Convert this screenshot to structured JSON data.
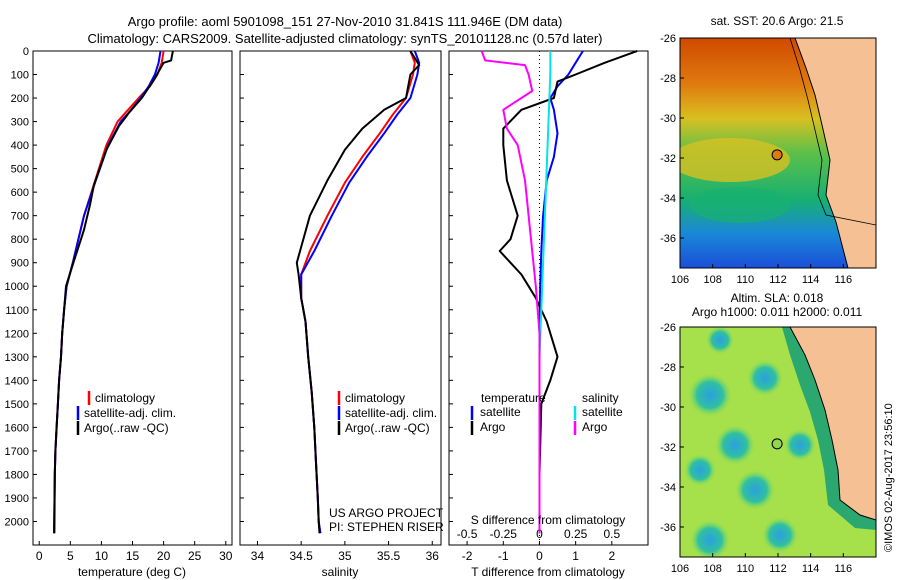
{
  "header": {
    "title_line1": "Argo profile: aoml 5901098_151 27-Nov-2010 31.841S 111.946E (DM data)",
    "title_line2": "Climatology: CARS2009. Satellite-adjusted climatology: synTS_20101128.nc (0.57d later)"
  },
  "colors": {
    "climatology": "#ff0000",
    "satellite": "#0000ff",
    "argo": "#000000",
    "salinity_satellite": "#00e5e5",
    "salinity_argo": "#ff00ff"
  },
  "chart_data": [
    {
      "type": "line",
      "id": "temperature",
      "xlabel": "temperature (deg C)",
      "xlim": [
        -1,
        31
      ],
      "ylim": [
        2100,
        0
      ],
      "xticks": [
        0,
        5,
        10,
        15,
        20,
        25,
        30
      ],
      "yticks": [
        0,
        100,
        200,
        300,
        400,
        500,
        600,
        700,
        800,
        900,
        1000,
        1100,
        1200,
        1300,
        1400,
        1500,
        1600,
        1700,
        1800,
        1900,
        2000
      ],
      "legend": [
        "climatology",
        "satellite-adj. clim.",
        "Argo(..raw -QC)"
      ],
      "series": [
        {
          "name": "climatology",
          "color": "#ff0000",
          "x": [
            20.0,
            19.7,
            19.0,
            17.8,
            16.0,
            14.3,
            12.6,
            10.8,
            9.0,
            7.2,
            5.4,
            4.4,
            4.0,
            3.7,
            3.5,
            3.2,
            3.0,
            2.8,
            2.6,
            2.5,
            2.45
          ],
          "y": [
            0,
            50,
            100,
            150,
            200,
            250,
            300,
            400,
            550,
            700,
            900,
            1000,
            1100,
            1200,
            1300,
            1400,
            1500,
            1600,
            1700,
            1800,
            2050
          ]
        },
        {
          "name": "satellite",
          "color": "#0000ff",
          "x": [
            19.5,
            19.2,
            18.6,
            17.6,
            16.3,
            14.8,
            13.1,
            11.1,
            9.1,
            7.2,
            5.4,
            4.4,
            4.0,
            3.7,
            3.5,
            3.2,
            3.0,
            2.8,
            2.6,
            2.5,
            2.4
          ],
          "y": [
            0,
            50,
            100,
            150,
            200,
            250,
            300,
            400,
            550,
            700,
            900,
            1000,
            1100,
            1200,
            1300,
            1400,
            1500,
            1600,
            1700,
            1800,
            2050
          ]
        },
        {
          "name": "argo",
          "color": "#000000",
          "x": [
            21.5,
            21.2,
            20.0,
            18.5,
            16.5,
            14.5,
            12.8,
            10.8,
            8.8,
            8.2,
            7.2,
            5.5,
            4.3,
            4.0,
            3.7,
            3.5,
            3.2,
            3.0,
            2.8,
            2.6,
            2.5,
            2.4
          ],
          "y": [
            0,
            40,
            50,
            120,
            200,
            260,
            320,
            420,
            570,
            650,
            760,
            900,
            1000,
            1100,
            1200,
            1300,
            1400,
            1500,
            1600,
            1700,
            1800,
            2050
          ]
        }
      ]
    },
    {
      "type": "line",
      "id": "salinity",
      "xlabel": "salinity",
      "xlim": [
        33.8,
        36.1
      ],
      "ylim": [
        2100,
        0
      ],
      "xticks": [
        34,
        34.5,
        35,
        35.5,
        36
      ],
      "legend": [
        "climatology",
        "satellite-adj. clim.",
        "Argo(..raw -QC)"
      ],
      "series": [
        {
          "name": "climatology",
          "color": "#ff0000",
          "x": [
            35.75,
            35.8,
            35.78,
            35.7,
            35.55,
            35.4,
            35.2,
            35.0,
            34.8,
            34.6,
            34.5,
            34.5,
            34.55,
            34.58,
            34.62,
            34.65,
            34.67,
            34.69,
            34.7,
            34.72
          ],
          "y": [
            0,
            50,
            100,
            200,
            270,
            350,
            450,
            560,
            700,
            850,
            950,
            1050,
            1150,
            1300,
            1450,
            1600,
            1750,
            1900,
            2000,
            2050
          ]
        },
        {
          "name": "satellite",
          "color": "#0000ff",
          "x": [
            35.8,
            35.85,
            35.83,
            35.75,
            35.6,
            35.45,
            35.25,
            35.05,
            34.85,
            34.65,
            34.5,
            34.5,
            34.55,
            34.58,
            34.62,
            34.65,
            34.67,
            34.69,
            34.7,
            34.72
          ],
          "y": [
            0,
            50,
            100,
            200,
            270,
            350,
            450,
            560,
            700,
            850,
            950,
            1050,
            1150,
            1300,
            1450,
            1600,
            1750,
            1900,
            2000,
            2050
          ]
        },
        {
          "name": "argo",
          "color": "#000000",
          "x": [
            35.75,
            35.85,
            35.75,
            35.7,
            35.45,
            35.2,
            35.0,
            34.8,
            34.6,
            34.45,
            34.47,
            34.5,
            34.55,
            34.58,
            34.62,
            34.65,
            34.67,
            34.69,
            34.7,
            34.71
          ],
          "y": [
            0,
            60,
            100,
            200,
            250,
            330,
            420,
            550,
            700,
            900,
            950,
            1050,
            1150,
            1300,
            1450,
            1600,
            1750,
            1900,
            2000,
            2050
          ]
        }
      ]
    },
    {
      "type": "line",
      "id": "difference",
      "xlabel_top": "S difference from climatology",
      "xlabel": "T difference from climatology",
      "xlim": [
        -2.5,
        3
      ],
      "ylim": [
        2100,
        0
      ],
      "xticks": [
        -2,
        -1,
        0,
        1,
        2
      ],
      "xticks_top_labels": [
        "-0.5",
        "-0.25",
        "0",
        "0.25",
        "0.5"
      ],
      "xticks_top_at": [
        -2,
        -1,
        0,
        1,
        2
      ],
      "legend": {
        "temperature_title": "temperature",
        "salinity_title": "salinity",
        "satellite": "satellite",
        "argo": "Argo"
      },
      "series": [
        {
          "name": "temperature satellite",
          "color": "#0000ff",
          "x": [
            1.2,
            1.0,
            0.8,
            0.5,
            0.3,
            0.4,
            0.5,
            0.4,
            0.2,
            0.1,
            0.05,
            0.02,
            0.0,
            0.0,
            0.0,
            0.0
          ],
          "y": [
            0,
            50,
            100,
            150,
            200,
            250,
            350,
            450,
            550,
            700,
            850,
            1000,
            1200,
            1500,
            1800,
            2050
          ]
        },
        {
          "name": "temperature Argo",
          "color": "#000000",
          "x": [
            2.7,
            1.8,
            1.0,
            0.5,
            0.4,
            -0.5,
            -1.0,
            -1.0,
            -0.9,
            -0.6,
            -0.8,
            -1.1,
            -0.5,
            -0.3,
            -0.1,
            0.2,
            0.5,
            0.3,
            0.05,
            0.0,
            0.0
          ],
          "y": [
            0,
            50,
            100,
            130,
            200,
            250,
            330,
            400,
            550,
            700,
            800,
            850,
            950,
            1000,
            1050,
            1150,
            1300,
            1400,
            1500,
            1800,
            2050
          ]
        },
        {
          "name": "salinity satellite",
          "color": "#00e5e5",
          "x": [
            0.3,
            0.3,
            0.25,
            0.2,
            0.15,
            0.1,
            0.05,
            0.0,
            0.0,
            0.0
          ],
          "y": [
            0,
            100,
            300,
            500,
            700,
            900,
            1100,
            1300,
            1600,
            2050
          ]
        },
        {
          "name": "salinity Argo",
          "color": "#ff00ff",
          "x": [
            -1.6,
            -1.5,
            -0.4,
            -0.3,
            -0.2,
            -1.0,
            -0.9,
            -0.6,
            -0.4,
            -0.3,
            -0.2,
            -0.1,
            0.0,
            0.0,
            0.0
          ],
          "y": [
            0,
            40,
            60,
            100,
            170,
            250,
            330,
            400,
            550,
            700,
            850,
            1000,
            1200,
            1500,
            2050
          ]
        }
      ]
    },
    {
      "type": "heatmap",
      "id": "sst_map",
      "title": "sat. SST: 20.6  Argo: 21.5",
      "xlim": [
        106,
        118
      ],
      "ylim": [
        -37.5,
        -26
      ],
      "xticks": [
        106,
        108,
        110,
        112,
        114,
        116
      ],
      "yticks": [
        -26,
        -28,
        -30,
        -32,
        -34,
        -36
      ],
      "argo_position": {
        "lon": 111.946,
        "lat": -31.841
      }
    },
    {
      "type": "heatmap",
      "id": "sla_map",
      "title_line1": "Altim. SLA: 0.018",
      "title_line2": "Argo h1000: 0.011 h2000: 0.011",
      "xlim": [
        106,
        118
      ],
      "ylim": [
        -37.5,
        -26
      ],
      "xticks": [
        106,
        108,
        110,
        112,
        114,
        116
      ],
      "yticks": [
        -26,
        -28,
        -30,
        -32,
        -34,
        -36
      ],
      "argo_position": {
        "lon": 111.946,
        "lat": -31.841
      }
    }
  ],
  "annotations": {
    "project_line1": "US ARGO PROJECT",
    "project_line2": "PI: STEPHEN RISER",
    "imos_stamp": "©IMOS 02-Aug-2017 23:56:10"
  }
}
